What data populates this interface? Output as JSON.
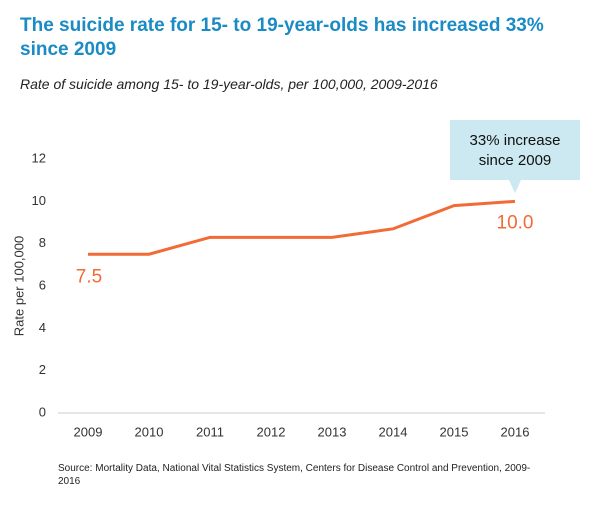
{
  "chart_data": {
    "type": "line",
    "title": "The suicide rate for 15- to 19-year-olds has increased 33% since 2009",
    "subtitle": "Rate of suicide among 15- to 19-year-olds, per 100,000, 2009-2016",
    "y_label": "Rate per 100,000",
    "categories": [
      "2009",
      "2010",
      "2011",
      "2012",
      "2013",
      "2014",
      "2015",
      "2016"
    ],
    "values": [
      7.5,
      7.5,
      8.3,
      8.3,
      8.3,
      8.7,
      9.8,
      10.0
    ],
    "value_labels": [
      "7.5",
      null,
      null,
      null,
      null,
      null,
      null,
      "10.0"
    ],
    "color": "#f26a36",
    "ylim": [
      0,
      12
    ],
    "yticks": [
      0,
      2,
      4,
      6,
      8,
      10,
      12
    ],
    "annotation": [
      "33% increase",
      "since 2009"
    ],
    "source": "Source: Mortality Data, National Vital Statistics System, Centers for Disease Control and Prevention, 2009-2016"
  }
}
